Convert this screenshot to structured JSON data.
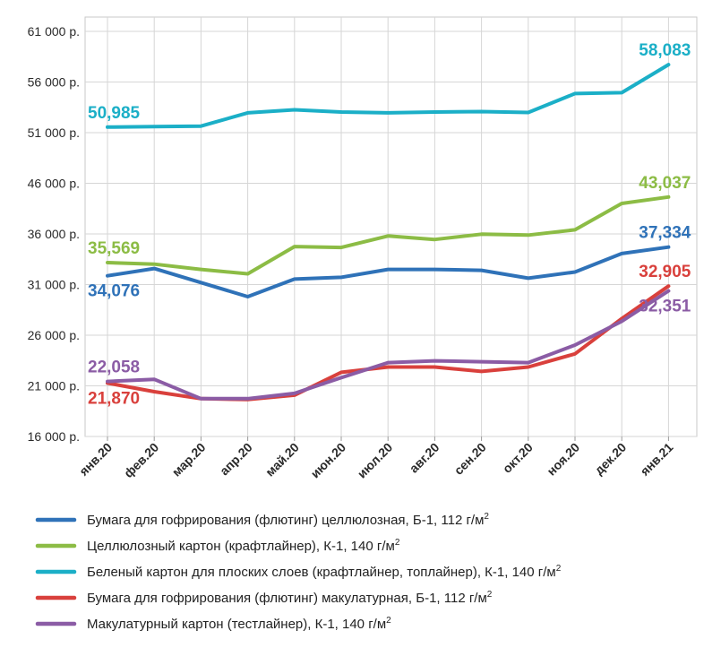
{
  "chart_data": {
    "type": "line",
    "categories": [
      "янв.20",
      "фев.20",
      "мар.20",
      "апр.20",
      "май.20",
      "июн.20",
      "июл.20",
      "авг.20",
      "сен.20",
      "окт.20",
      "ноя.20",
      "дек.20",
      "янв.21"
    ],
    "y_ticks": [
      "61 000 р.",
      "56 000 р.",
      "51 000 р.",
      "46 000 р.",
      "36 000 р.",
      "31 000 р.",
      "26 000 р.",
      "21 000 р.",
      "16 000 р."
    ],
    "grid": true,
    "legend_position": "bottom",
    "series": [
      {
        "name": "Бумага для гофрирования (флютинг) целлюлозная, Б-1, 112 г/м",
        "superscript": "2",
        "color": "#2f72b8",
        "values": [
          34076,
          34900,
          33300,
          31700,
          33700,
          33900,
          34800,
          34800,
          34700,
          33800,
          34500,
          36600,
          37334
        ],
        "labels": [
          {
            "index": 0,
            "text": "34,076",
            "pos": "below"
          },
          {
            "index": 12,
            "text": "37,334",
            "pos": "above"
          }
        ]
      },
      {
        "name": "Целлюлозный картон (крафтлайнер), К-1, 140 г/м",
        "superscript": "2",
        "color": "#8cbc45",
        "values": [
          35569,
          35400,
          34800,
          34300,
          37400,
          37300,
          38600,
          38200,
          38800,
          38700,
          39300,
          42300,
          43037
        ],
        "labels": [
          {
            "index": 0,
            "text": "35,569",
            "pos": "above"
          },
          {
            "index": 12,
            "text": "43,037",
            "pos": "above"
          }
        ]
      },
      {
        "name": "Беленый картон для плоских слоев (крафтлайнер, топлайнер), К-1, 140 г/м",
        "superscript": "2",
        "color": "#1bafc7",
        "values": [
          50985,
          51050,
          51100,
          52600,
          52950,
          52700,
          52600,
          52700,
          52750,
          52650,
          54800,
          54900,
          58083
        ],
        "labels": [
          {
            "index": 0,
            "text": "50,985",
            "pos": "above"
          },
          {
            "index": 12,
            "text": "58,083",
            "pos": "above"
          }
        ]
      },
      {
        "name": "Бумага для гофрирования (флютинг) макулатурная, Б-1, 112 г/м",
        "superscript": "2",
        "color": "#d9403c",
        "values": [
          21870,
          20900,
          20100,
          20000,
          20500,
          23100,
          23700,
          23700,
          23200,
          23700,
          25200,
          29200,
          32905
        ],
        "labels": [
          {
            "index": 0,
            "text": "21,870",
            "pos": "below"
          },
          {
            "index": 12,
            "text": "32,905",
            "pos": "above"
          }
        ]
      },
      {
        "name": "Макулатурный картон (тестлайнер), К-1, 140 г/м",
        "superscript": "2",
        "color": "#8b5ca5",
        "values": [
          22058,
          22300,
          20100,
          20100,
          20700,
          22500,
          24200,
          24400,
          24300,
          24200,
          26200,
          28900,
          32351
        ],
        "labels": [
          {
            "index": 0,
            "text": "22,058",
            "pos": "above"
          },
          {
            "index": 12,
            "text": "32,351",
            "pos": "below"
          }
        ]
      }
    ]
  }
}
